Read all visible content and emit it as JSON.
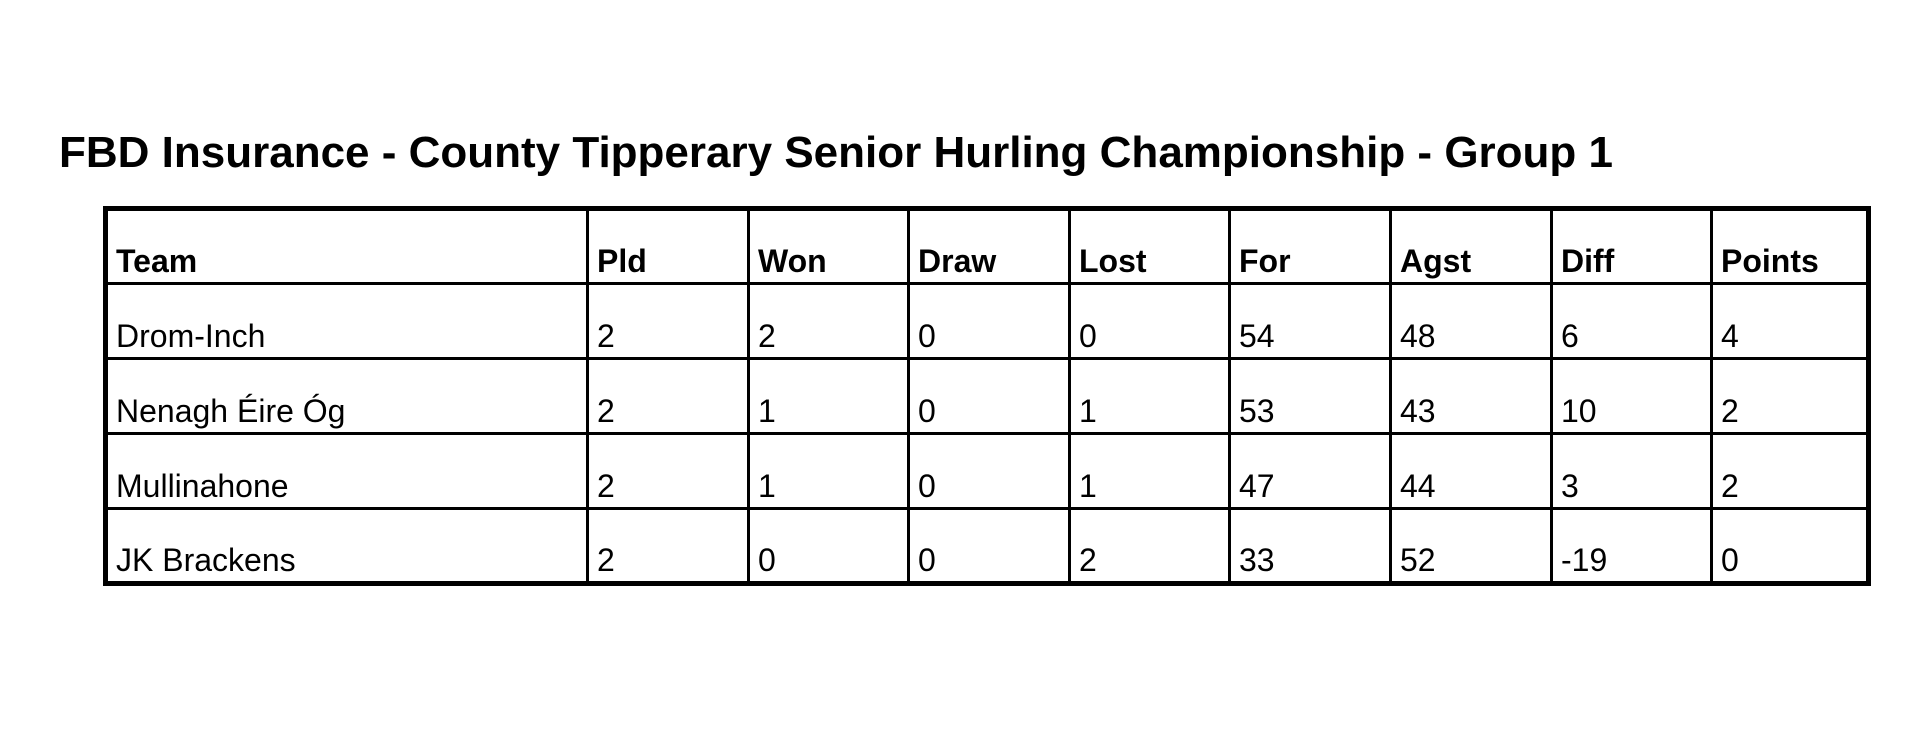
{
  "title": "FBD Insurance - County Tipperary Senior Hurling Championship - Group 1",
  "table": {
    "headers": [
      "Team",
      "Pld",
      "Won",
      "Draw",
      "Lost",
      "For",
      "Agst",
      "Diff",
      "Points"
    ],
    "rows": [
      [
        "Drom-Inch",
        "2",
        "2",
        "0",
        "0",
        "54",
        "48",
        "6",
        "4"
      ],
      [
        "Nenagh Éire Óg",
        "2",
        "1",
        "0",
        "1",
        "53",
        "43",
        "10",
        "2"
      ],
      [
        "Mullinahone",
        "2",
        "1",
        "0",
        "1",
        "47",
        "44",
        "3",
        "2"
      ],
      [
        "JK Brackens",
        "2",
        "0",
        "0",
        "2",
        "33",
        "52",
        "-19",
        "0"
      ]
    ]
  }
}
